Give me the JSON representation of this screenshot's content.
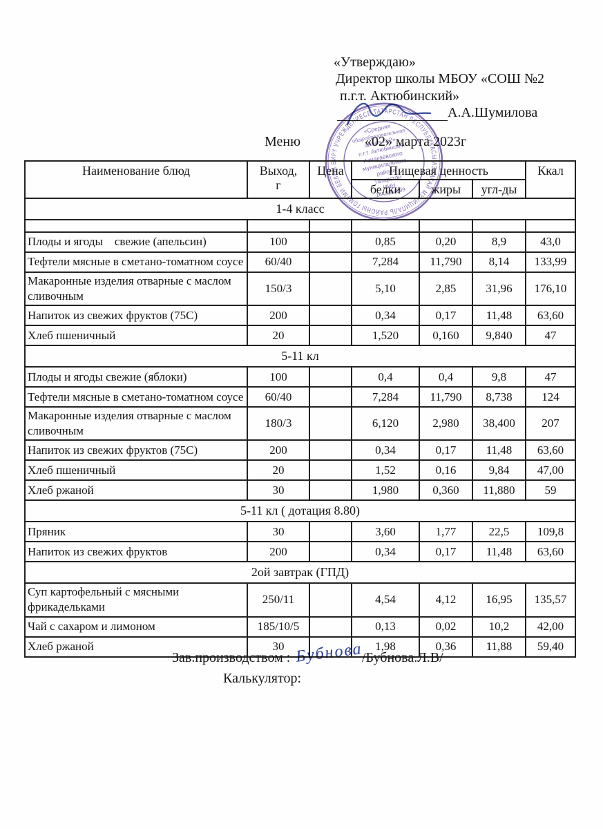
{
  "header": {
    "approve_label": "«Утверждаю»",
    "director_line1": "Директор школы МБОУ «СОШ №2",
    "director_line2": "п.г.т. Актюбинский»",
    "director_name": "А.А.Шумилова",
    "menu_label": "Меню",
    "date_line": "«02» марта 2023г"
  },
  "stamp": {
    "color": "#6d51a4",
    "ring_text": "ТАТАРСТАН РЕСПУБЛИКАСЫ АЗНАКАЙ МУНИЦИПАЛЬ РАЙОНЫ ГОМУМИ БЕЛЕМ БИРҮ УЧРЕЖДЕНИЕСЕ",
    "center_lines": [
      "«Средняя",
      "общеобразовательная",
      "школа №2»",
      "п.г.т. Актюбинский",
      "Азнакаевского",
      "муниципального",
      "района",
      "Татарстан",
      "ИНН",
      "1643004099"
    ]
  },
  "table": {
    "col_name": "Наименование блюд",
    "col_output_line1": "Выход,",
    "col_output_line2": "г",
    "col_price": "Цена",
    "col_nutrition": "Пищевая ценность",
    "col_kcal": "Ккал",
    "sub_protein": "белки",
    "sub_fat": "жиры",
    "sub_carbs": "угл-ды",
    "sections": [
      {
        "title": "1-4 класс",
        "empty_row": true,
        "rows": [
          {
            "name": "Плоды и ягоды    свежие (апельсин)",
            "output": "100",
            "price": "",
            "protein": "0,85",
            "fat": "0,20",
            "carbs": "8,9",
            "kcal": "43,0"
          },
          {
            "name": "Тефтели мясные в сметано-томатном соусе",
            "output": "60/40",
            "price": "",
            "protein": "7,284",
            "fat": "11,790",
            "carbs": "8,14",
            "kcal": "133,99"
          },
          {
            "name": "Макаронные изделия отварные с маслом сливочным",
            "output": "150/3",
            "price": "",
            "protein": "5,10",
            "fat": "2,85",
            "carbs": "31,96",
            "kcal": "176,10"
          },
          {
            "name": "Напиток из свежих фруктов (75С)",
            "output": "200",
            "price": "",
            "protein": "0,34",
            "fat": "0,17",
            "carbs": "11,48",
            "kcal": "63,60"
          },
          {
            "name": "Хлеб пшеничный",
            "output": "20",
            "price": "",
            "protein": "1,520",
            "fat": "0,160",
            "carbs": "9,840",
            "kcal": "47"
          }
        ]
      },
      {
        "title": "5-11 кл",
        "empty_row": false,
        "rows": [
          {
            "name": "Плоды и ягоды свежие (яблоки)",
            "output": "100",
            "price": "",
            "protein": "0,4",
            "fat": "0,4",
            "carbs": "9,8",
            "kcal": "47"
          },
          {
            "name": "Тефтели мясные в сметано-томатном соусе",
            "output": "60/40",
            "price": "",
            "protein": "7,284",
            "fat": "11,790",
            "carbs": "8,738",
            "kcal": "124"
          },
          {
            "name": "Макаронные изделия отварные с маслом сливочным",
            "output": "180/3",
            "price": "",
            "protein": "6,120",
            "fat": "2,980",
            "carbs": "38,400",
            "kcal": "207"
          },
          {
            "name": "Напиток из свежих фруктов (75С)",
            "output": "200",
            "price": "",
            "protein": "0,34",
            "fat": "0,17",
            "carbs": "11,48",
            "kcal": "63,60"
          },
          {
            "name": "Хлеб пшеничный",
            "output": "20",
            "price": "",
            "protein": "1,52",
            "fat": "0,16",
            "carbs": "9,84",
            "kcal": "47,00"
          },
          {
            "name": "Хлеб ржаной",
            "output": "30",
            "price": "",
            "protein": "1,980",
            "fat": "0,360",
            "carbs": "11,880",
            "kcal": "59"
          }
        ]
      },
      {
        "title": "5-11 кл ( дотация 8.80)",
        "empty_row": false,
        "rows": [
          {
            "name": "Пряник",
            "output": "30",
            "price": "",
            "protein": "3,60",
            "fat": "1,77",
            "carbs": "22,5",
            "kcal": "109,8"
          },
          {
            "name": "Напиток из свежих фруктов",
            "output": "200",
            "price": "",
            "protein": "0,34",
            "fat": "0,17",
            "carbs": "11,48",
            "kcal": "63,60"
          }
        ]
      },
      {
        "title": "2ой завтрак (ГПД)",
        "empty_row": false,
        "rows": [
          {
            "name": "Суп картофельный с мясными фрикадельками",
            "output": "250/11",
            "price": "",
            "protein": "4,54",
            "fat": "4,12",
            "carbs": "16,95",
            "kcal": "135,57"
          },
          {
            "name": "Чай с сахаром и лимоном",
            "output": "185/10/5",
            "price": "",
            "protein": "0,13",
            "fat": "0,02",
            "carbs": "10,2",
            "kcal": "42,00"
          },
          {
            "name": "Хлеб ржаной",
            "output": "30",
            "price": "",
            "protein": "1,98",
            "fat": "0,36",
            "carbs": "11,88",
            "kcal": "59,40"
          }
        ]
      }
    ]
  },
  "footer": {
    "manager_label": "Зав.производством :",
    "signature_script": "Бубнова",
    "manager_name": "/Бубнова.Л.В/",
    "calculator_label": "Калькулятор:"
  }
}
